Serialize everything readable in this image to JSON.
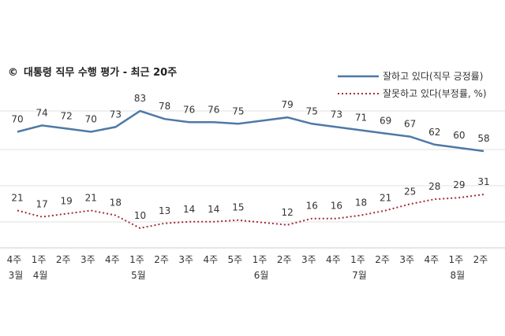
{
  "chart_data": {
    "type": "line",
    "title": "대통령 직무 수행 평가 - 최근 20주",
    "title_symbol": "©",
    "weeks": [
      "4주",
      "1주",
      "2주",
      "3주",
      "4주",
      "1주",
      "2주",
      "3주",
      "4주",
      "5주",
      "1주",
      "2주",
      "3주",
      "4주",
      "1주",
      "2주",
      "3주",
      "4주",
      "1주",
      "2주"
    ],
    "months": [
      {
        "index": 0,
        "label": "3월"
      },
      {
        "index": 1,
        "label": "4월"
      },
      {
        "index": 5,
        "label": "5월"
      },
      {
        "index": 10,
        "label": "6월"
      },
      {
        "index": 14,
        "label": "7월"
      },
      {
        "index": 18,
        "label": "8월"
      }
    ],
    "series": [
      {
        "name": "잘하고 있다(직무 긍정률)",
        "color": "#4e79a7",
        "style": "solid",
        "values": [
          70,
          74,
          72,
          70,
          73,
          83,
          78,
          76,
          76,
          75,
          null,
          79,
          75,
          73,
          71,
          69,
          67,
          62,
          60,
          58
        ]
      },
      {
        "name": "잘못하고 있다(부정률, %)",
        "color": "#a52a3c",
        "style": "dotted",
        "values": [
          21,
          17,
          19,
          21,
          18,
          10,
          13,
          14,
          14,
          15,
          null,
          12,
          16,
          16,
          18,
          21,
          25,
          28,
          29,
          31
        ]
      }
    ],
    "ylim": [
      0,
      100
    ],
    "grid": true
  }
}
